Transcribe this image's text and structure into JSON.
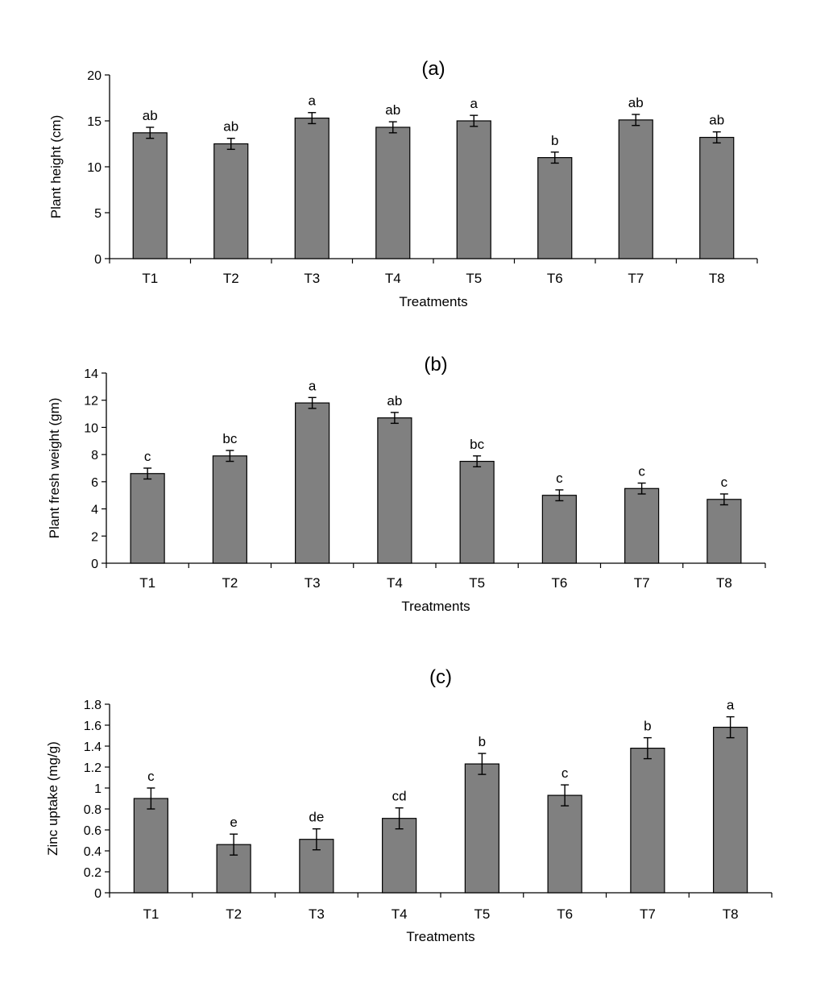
{
  "chart_data": [
    {
      "type": "bar",
      "title": "(a)",
      "xlabel": "Treatments",
      "ylabel": "Plant height  (cm)",
      "categories": [
        "T1",
        "T2",
        "T3",
        "T4",
        "T5",
        "T6",
        "T7",
        "T8"
      ],
      "values": [
        13.7,
        12.5,
        15.3,
        14.3,
        15.0,
        11.0,
        15.1,
        13.2
      ],
      "errors": [
        0.6,
        0.6,
        0.6,
        0.6,
        0.6,
        0.6,
        0.6,
        0.6
      ],
      "significance": [
        "ab",
        "ab",
        "a",
        "ab",
        "a",
        "b",
        "ab",
        "ab"
      ],
      "ylim": [
        0,
        20
      ],
      "yticks": [
        "0",
        "5",
        "10",
        "15",
        "20"
      ],
      "bar_color": "#808080"
    },
    {
      "type": "bar",
      "title": "(b)",
      "xlabel": "Treatments",
      "ylabel": "Plant fresh weight  (gm)",
      "categories": [
        "T1",
        "T2",
        "T3",
        "T4",
        "T5",
        "T6",
        "T7",
        "T8"
      ],
      "values": [
        6.6,
        7.9,
        11.8,
        10.7,
        7.5,
        5.0,
        5.5,
        4.7
      ],
      "errors": [
        0.4,
        0.4,
        0.4,
        0.4,
        0.4,
        0.4,
        0.4,
        0.4
      ],
      "significance": [
        "c",
        "bc",
        "a",
        "ab",
        "bc",
        "c",
        "c",
        "c"
      ],
      "ylim": [
        0,
        14
      ],
      "yticks": [
        "0",
        "2",
        "4",
        "6",
        "8",
        "10",
        "12",
        "14"
      ],
      "bar_color": "#808080"
    },
    {
      "type": "bar",
      "title": "(c)",
      "xlabel": "Treatments",
      "ylabel": "Zinc uptake (mg/g)",
      "categories": [
        "T1",
        "T2",
        "T3",
        "T4",
        "T5",
        "T6",
        "T7",
        "T8"
      ],
      "values": [
        0.9,
        0.46,
        0.51,
        0.71,
        1.23,
        0.93,
        1.38,
        1.58
      ],
      "errors": [
        0.1,
        0.1,
        0.1,
        0.1,
        0.1,
        0.1,
        0.1,
        0.1
      ],
      "significance": [
        "c",
        "e",
        "de",
        "cd",
        "b",
        "c",
        "b",
        "a"
      ],
      "ylim": [
        0,
        1.8
      ],
      "yticks": [
        "0",
        "0.2",
        "0.4",
        "0.6",
        "0.8",
        "1",
        "1.2",
        "1.4",
        "1.6",
        "1.8"
      ],
      "bar_color": "#808080"
    }
  ]
}
